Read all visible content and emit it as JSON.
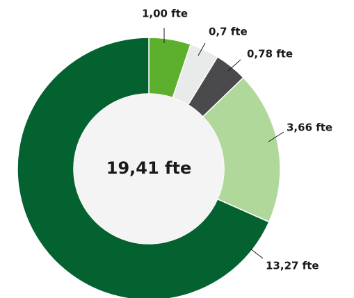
{
  "chart_data": {
    "type": "pie",
    "donut": true,
    "values": [
      1.0,
      0.7,
      0.78,
      3.66,
      13.27
    ],
    "value_labels": [
      "1,00 fte",
      "0,7 fte",
      "0,78 fte",
      "3,66 fte",
      "13,27 fte"
    ],
    "colors": [
      "#5cb02d",
      "#e8ebea",
      "#4a494b",
      "#b0d89b",
      "#03622f"
    ],
    "center_label": "19,41 fte"
  }
}
